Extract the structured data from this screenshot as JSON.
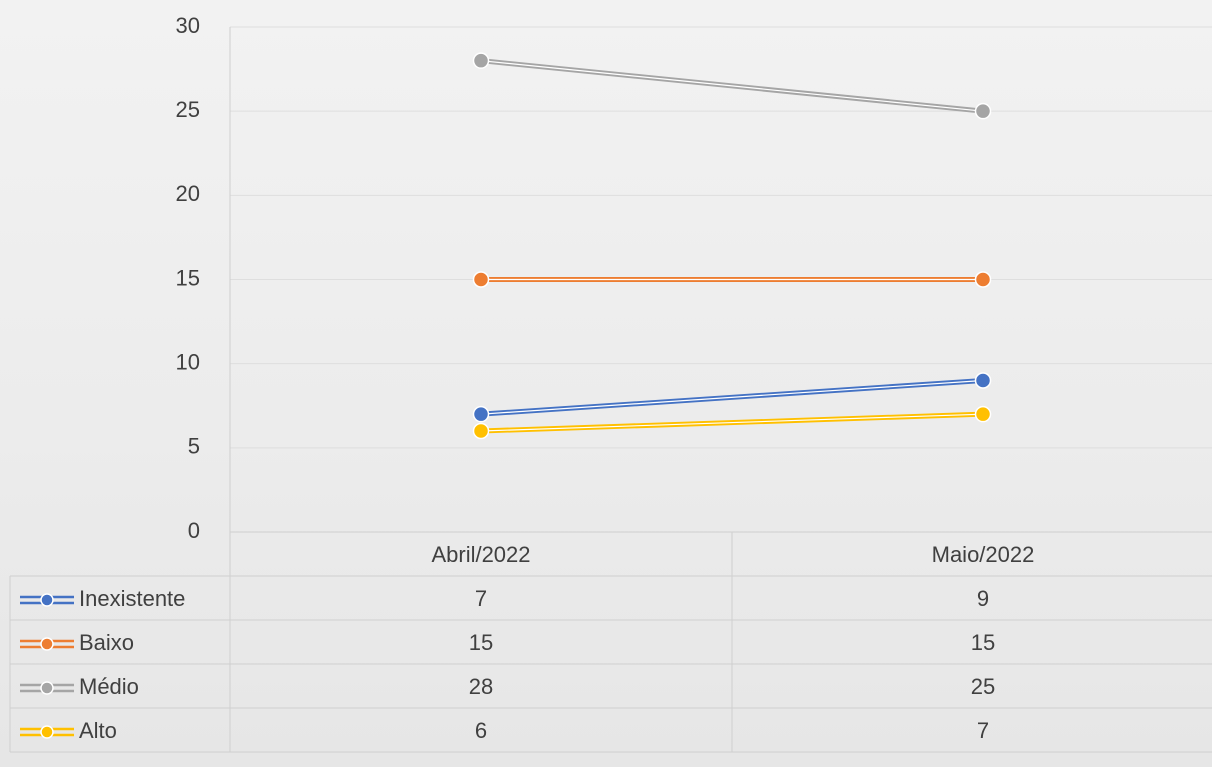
{
  "chart_data": {
    "type": "line",
    "categories": [
      "Abril/2022",
      "Maio/2022"
    ],
    "series": [
      {
        "name": "Inexistente",
        "color": "#4472c4",
        "values": [
          7,
          9
        ]
      },
      {
        "name": "Baixo",
        "color": "#ed7d31",
        "values": [
          15,
          15
        ]
      },
      {
        "name": "Médio",
        "color": "#a5a5a5",
        "values": [
          28,
          25
        ]
      },
      {
        "name": "Alto",
        "color": "#ffc000",
        "values": [
          6,
          7
        ]
      }
    ],
    "ylim": [
      0,
      30
    ],
    "yticks": [
      0,
      5,
      10,
      15,
      20,
      25,
      30
    ],
    "grid": true
  }
}
